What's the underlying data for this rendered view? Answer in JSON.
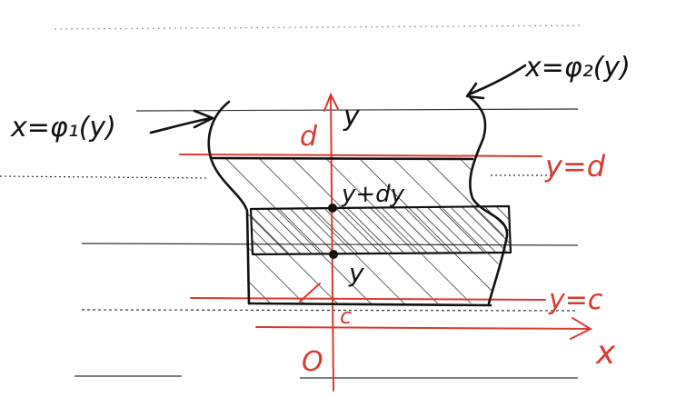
{
  "colors": {
    "ink": "#111111",
    "red": "#d93a30",
    "notebook_line": "#333333",
    "background": "#ffffff"
  },
  "labels": {
    "left_curve": "x=φ₁(y)",
    "right_curve": "x=φ₂(y)",
    "y_axis": "y",
    "x_axis": "x",
    "origin": "O",
    "d_tick": "d",
    "c_tick": "c",
    "line_d": "y=d",
    "line_c": "y=c",
    "upper_point": "y+dy",
    "lower_point": "y"
  }
}
